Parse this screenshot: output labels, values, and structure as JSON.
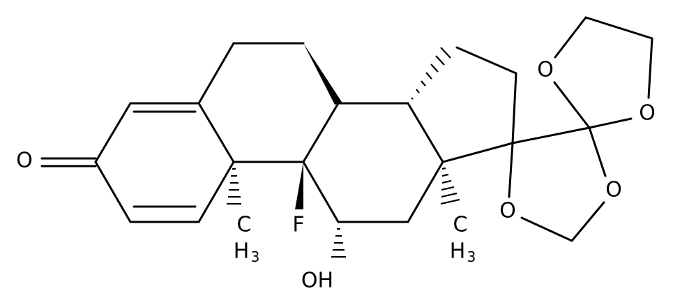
{
  "atoms": [
    {
      "label": "O"
    },
    {
      "label": "F"
    },
    {
      "label": "OH"
    },
    {
      "top": "C",
      "bottom": "H",
      "subscript": "3"
    },
    {
      "top": "C",
      "bottom": "H",
      "subscript": "3"
    },
    {
      "label": "O"
    },
    {
      "label": "O"
    },
    {
      "label": "O"
    },
    {
      "label": "O"
    }
  ]
}
